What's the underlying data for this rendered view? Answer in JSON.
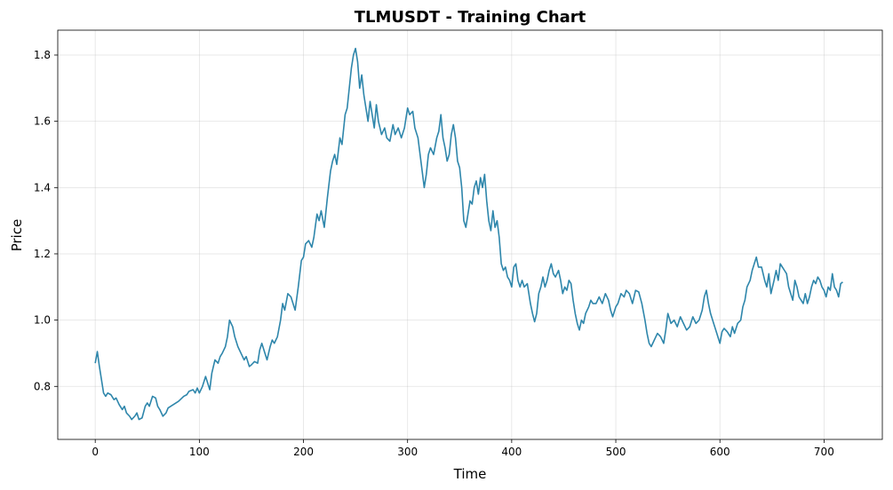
{
  "chart_data": {
    "type": "line",
    "title": "TLMUSDT - Training Chart",
    "xlabel": "Time",
    "ylabel": "Price",
    "xlim": [
      -36,
      756
    ],
    "ylim": [
      0.64,
      1.875
    ],
    "xticks": [
      0,
      100,
      200,
      300,
      400,
      500,
      600,
      700
    ],
    "yticks": [
      0.8,
      1.0,
      1.2,
      1.4,
      1.6,
      1.8
    ],
    "ytick_labels": [
      "0.8",
      "1.0",
      "1.2",
      "1.4",
      "1.6",
      "1.8"
    ],
    "grid": true,
    "line_color": "#2e86ab",
    "series": [
      {
        "points": [
          [
            0,
            0.87
          ],
          [
            2,
            0.905
          ],
          [
            4,
            0.86
          ],
          [
            6,
            0.82
          ],
          [
            8,
            0.78
          ],
          [
            10,
            0.77
          ],
          [
            12,
            0.78
          ],
          [
            15,
            0.775
          ],
          [
            18,
            0.76
          ],
          [
            20,
            0.765
          ],
          [
            23,
            0.745
          ],
          [
            26,
            0.73
          ],
          [
            28,
            0.74
          ],
          [
            30,
            0.72
          ],
          [
            33,
            0.71
          ],
          [
            35,
            0.7
          ],
          [
            38,
            0.71
          ],
          [
            40,
            0.72
          ],
          [
            42,
            0.7
          ],
          [
            45,
            0.705
          ],
          [
            48,
            0.74
          ],
          [
            50,
            0.75
          ],
          [
            52,
            0.74
          ],
          [
            55,
            0.77
          ],
          [
            58,
            0.765
          ],
          [
            60,
            0.74
          ],
          [
            62,
            0.73
          ],
          [
            65,
            0.71
          ],
          [
            68,
            0.72
          ],
          [
            70,
            0.735
          ],
          [
            75,
            0.745
          ],
          [
            80,
            0.755
          ],
          [
            85,
            0.77
          ],
          [
            88,
            0.775
          ],
          [
            90,
            0.785
          ],
          [
            94,
            0.79
          ],
          [
            96,
            0.78
          ],
          [
            98,
            0.795
          ],
          [
            100,
            0.78
          ],
          [
            103,
            0.8
          ],
          [
            106,
            0.83
          ],
          [
            108,
            0.81
          ],
          [
            110,
            0.79
          ],
          [
            112,
            0.84
          ],
          [
            115,
            0.88
          ],
          [
            118,
            0.87
          ],
          [
            120,
            0.89
          ],
          [
            122,
            0.9
          ],
          [
            125,
            0.92
          ],
          [
            127,
            0.95
          ],
          [
            129,
            1.0
          ],
          [
            132,
            0.98
          ],
          [
            134,
            0.95
          ],
          [
            137,
            0.92
          ],
          [
            140,
            0.9
          ],
          [
            143,
            0.88
          ],
          [
            145,
            0.89
          ],
          [
            148,
            0.86
          ],
          [
            150,
            0.865
          ],
          [
            153,
            0.875
          ],
          [
            156,
            0.87
          ],
          [
            158,
            0.91
          ],
          [
            160,
            0.93
          ],
          [
            163,
            0.9
          ],
          [
            165,
            0.88
          ],
          [
            168,
            0.92
          ],
          [
            170,
            0.94
          ],
          [
            172,
            0.93
          ],
          [
            175,
            0.95
          ],
          [
            178,
            1.0
          ],
          [
            180,
            1.05
          ],
          [
            182,
            1.03
          ],
          [
            185,
            1.08
          ],
          [
            188,
            1.07
          ],
          [
            190,
            1.05
          ],
          [
            192,
            1.03
          ],
          [
            195,
            1.1
          ],
          [
            198,
            1.18
          ],
          [
            200,
            1.19
          ],
          [
            202,
            1.23
          ],
          [
            205,
            1.24
          ],
          [
            208,
            1.22
          ],
          [
            210,
            1.25
          ],
          [
            213,
            1.32
          ],
          [
            215,
            1.3
          ],
          [
            217,
            1.33
          ],
          [
            220,
            1.28
          ],
          [
            223,
            1.37
          ],
          [
            226,
            1.45
          ],
          [
            228,
            1.48
          ],
          [
            230,
            1.5
          ],
          [
            232,
            1.47
          ],
          [
            235,
            1.55
          ],
          [
            237,
            1.53
          ],
          [
            240,
            1.62
          ],
          [
            242,
            1.64
          ],
          [
            244,
            1.7
          ],
          [
            246,
            1.76
          ],
          [
            248,
            1.8
          ],
          [
            250,
            1.82
          ],
          [
            252,
            1.78
          ],
          [
            254,
            1.7
          ],
          [
            256,
            1.74
          ],
          [
            258,
            1.68
          ],
          [
            260,
            1.64
          ],
          [
            262,
            1.6
          ],
          [
            264,
            1.66
          ],
          [
            266,
            1.62
          ],
          [
            268,
            1.58
          ],
          [
            270,
            1.65
          ],
          [
            272,
            1.6
          ],
          [
            275,
            1.56
          ],
          [
            278,
            1.58
          ],
          [
            280,
            1.55
          ],
          [
            283,
            1.54
          ],
          [
            286,
            1.59
          ],
          [
            288,
            1.56
          ],
          [
            291,
            1.58
          ],
          [
            294,
            1.55
          ],
          [
            297,
            1.58
          ],
          [
            300,
            1.64
          ],
          [
            302,
            1.62
          ],
          [
            305,
            1.63
          ],
          [
            307,
            1.58
          ],
          [
            310,
            1.55
          ],
          [
            312,
            1.5
          ],
          [
            314,
            1.45
          ],
          [
            316,
            1.4
          ],
          [
            318,
            1.44
          ],
          [
            320,
            1.5
          ],
          [
            322,
            1.52
          ],
          [
            325,
            1.5
          ],
          [
            328,
            1.55
          ],
          [
            330,
            1.57
          ],
          [
            332,
            1.62
          ],
          [
            334,
            1.55
          ],
          [
            336,
            1.52
          ],
          [
            338,
            1.48
          ],
          [
            340,
            1.5
          ],
          [
            342,
            1.56
          ],
          [
            344,
            1.59
          ],
          [
            346,
            1.55
          ],
          [
            348,
            1.48
          ],
          [
            350,
            1.46
          ],
          [
            352,
            1.4
          ],
          [
            354,
            1.3
          ],
          [
            356,
            1.28
          ],
          [
            358,
            1.32
          ],
          [
            360,
            1.36
          ],
          [
            362,
            1.35
          ],
          [
            364,
            1.4
          ],
          [
            366,
            1.42
          ],
          [
            368,
            1.38
          ],
          [
            370,
            1.43
          ],
          [
            372,
            1.4
          ],
          [
            374,
            1.44
          ],
          [
            376,
            1.36
          ],
          [
            378,
            1.3
          ],
          [
            380,
            1.27
          ],
          [
            382,
            1.33
          ],
          [
            384,
            1.28
          ],
          [
            386,
            1.3
          ],
          [
            388,
            1.25
          ],
          [
            390,
            1.17
          ],
          [
            392,
            1.15
          ],
          [
            394,
            1.16
          ],
          [
            396,
            1.13
          ],
          [
            398,
            1.12
          ],
          [
            400,
            1.1
          ],
          [
            402,
            1.16
          ],
          [
            404,
            1.17
          ],
          [
            406,
            1.12
          ],
          [
            408,
            1.1
          ],
          [
            410,
            1.12
          ],
          [
            412,
            1.1
          ],
          [
            415,
            1.11
          ],
          [
            418,
            1.05
          ],
          [
            420,
            1.02
          ],
          [
            422,
            0.995
          ],
          [
            424,
            1.02
          ],
          [
            426,
            1.08
          ],
          [
            428,
            1.1
          ],
          [
            430,
            1.13
          ],
          [
            432,
            1.1
          ],
          [
            434,
            1.12
          ],
          [
            436,
            1.15
          ],
          [
            438,
            1.17
          ],
          [
            440,
            1.14
          ],
          [
            442,
            1.13
          ],
          [
            445,
            1.15
          ],
          [
            447,
            1.12
          ],
          [
            449,
            1.08
          ],
          [
            451,
            1.1
          ],
          [
            453,
            1.09
          ],
          [
            455,
            1.12
          ],
          [
            457,
            1.11
          ],
          [
            459,
            1.06
          ],
          [
            461,
            1.02
          ],
          [
            463,
            0.99
          ],
          [
            465,
            0.97
          ],
          [
            467,
            1.0
          ],
          [
            469,
            0.99
          ],
          [
            471,
            1.02
          ],
          [
            474,
            1.04
          ],
          [
            476,
            1.06
          ],
          [
            478,
            1.05
          ],
          [
            481,
            1.05
          ],
          [
            484,
            1.07
          ],
          [
            487,
            1.05
          ],
          [
            490,
            1.08
          ],
          [
            493,
            1.06
          ],
          [
            495,
            1.03
          ],
          [
            497,
            1.01
          ],
          [
            500,
            1.04
          ],
          [
            502,
            1.05
          ],
          [
            505,
            1.08
          ],
          [
            508,
            1.07
          ],
          [
            510,
            1.09
          ],
          [
            513,
            1.08
          ],
          [
            516,
            1.05
          ],
          [
            519,
            1.09
          ],
          [
            522,
            1.085
          ],
          [
            525,
            1.05
          ],
          [
            528,
            1.0
          ],
          [
            530,
            0.96
          ],
          [
            532,
            0.93
          ],
          [
            534,
            0.92
          ],
          [
            537,
            0.94
          ],
          [
            540,
            0.96
          ],
          [
            543,
            0.95
          ],
          [
            546,
            0.93
          ],
          [
            548,
            0.97
          ],
          [
            550,
            1.02
          ],
          [
            553,
            0.99
          ],
          [
            556,
            1.0
          ],
          [
            559,
            0.98
          ],
          [
            562,
            1.01
          ],
          [
            565,
            0.99
          ],
          [
            568,
            0.97
          ],
          [
            571,
            0.98
          ],
          [
            574,
            1.01
          ],
          [
            577,
            0.99
          ],
          [
            580,
            1.0
          ],
          [
            583,
            1.03
          ],
          [
            585,
            1.07
          ],
          [
            587,
            1.09
          ],
          [
            589,
            1.05
          ],
          [
            591,
            1.02
          ],
          [
            594,
            0.99
          ],
          [
            597,
            0.96
          ],
          [
            600,
            0.93
          ],
          [
            602,
            0.965
          ],
          [
            604,
            0.975
          ],
          [
            607,
            0.965
          ],
          [
            610,
            0.95
          ],
          [
            612,
            0.98
          ],
          [
            614,
            0.96
          ],
          [
            617,
            0.99
          ],
          [
            620,
            1.0
          ],
          [
            622,
            1.04
          ],
          [
            624,
            1.06
          ],
          [
            626,
            1.1
          ],
          [
            629,
            1.12
          ],
          [
            631,
            1.15
          ],
          [
            633,
            1.17
          ],
          [
            635,
            1.19
          ],
          [
            637,
            1.16
          ],
          [
            640,
            1.16
          ],
          [
            643,
            1.12
          ],
          [
            645,
            1.1
          ],
          [
            647,
            1.14
          ],
          [
            649,
            1.08
          ],
          [
            652,
            1.12
          ],
          [
            654,
            1.15
          ],
          [
            656,
            1.12
          ],
          [
            658,
            1.17
          ],
          [
            660,
            1.16
          ],
          [
            662,
            1.15
          ],
          [
            664,
            1.14
          ],
          [
            666,
            1.1
          ],
          [
            668,
            1.08
          ],
          [
            670,
            1.06
          ],
          [
            672,
            1.12
          ],
          [
            674,
            1.1
          ],
          [
            676,
            1.07
          ],
          [
            678,
            1.06
          ],
          [
            680,
            1.05
          ],
          [
            682,
            1.08
          ],
          [
            684,
            1.05
          ],
          [
            686,
            1.07
          ],
          [
            688,
            1.1
          ],
          [
            690,
            1.12
          ],
          [
            692,
            1.11
          ],
          [
            694,
            1.13
          ],
          [
            696,
            1.12
          ],
          [
            698,
            1.1
          ],
          [
            700,
            1.09
          ],
          [
            702,
            1.07
          ],
          [
            704,
            1.1
          ],
          [
            706,
            1.09
          ],
          [
            708,
            1.14
          ],
          [
            710,
            1.1
          ],
          [
            712,
            1.09
          ],
          [
            714,
            1.07
          ],
          [
            716,
            1.11
          ],
          [
            718,
            1.115
          ]
        ]
      }
    ]
  }
}
